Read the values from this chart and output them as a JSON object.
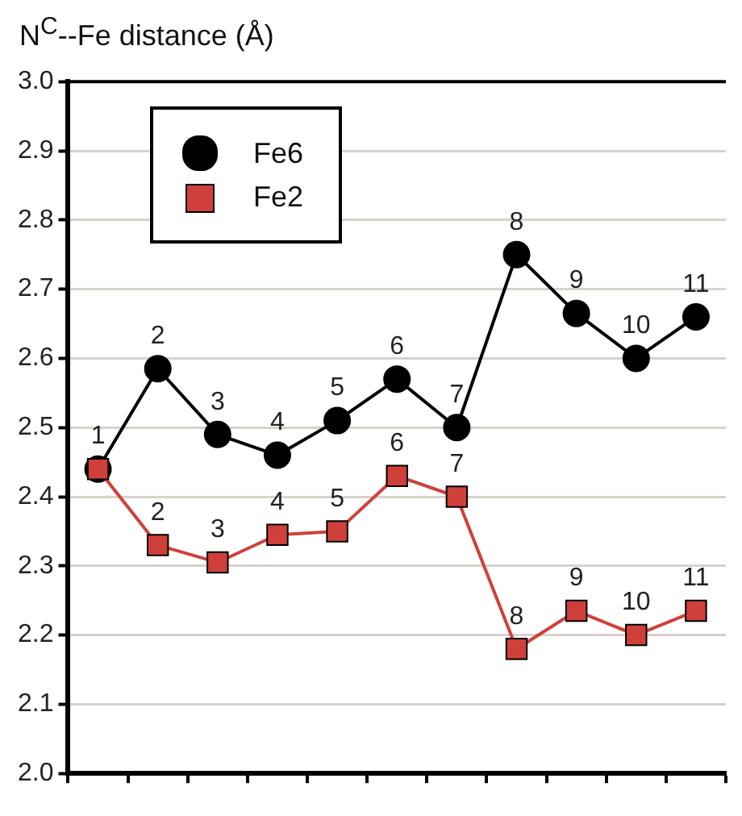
{
  "chart_data": {
    "type": "line",
    "ylabel": "N$^{C}$--Fe distance (Å)",
    "categories": [
      null,
      null,
      null,
      null,
      null,
      null,
      null,
      null,
      null,
      null,
      null
    ],
    "series": [
      {
        "name": "Fe6",
        "color": "#000000",
        "marker": "circle",
        "values": [
          2.44,
          2.585,
          2.49,
          2.46,
          2.51,
          2.57,
          2.5,
          2.75,
          2.665,
          2.6,
          2.66
        ]
      },
      {
        "name": "Fe2",
        "color": "#d0403a",
        "marker": "square",
        "values": [
          2.44,
          2.33,
          2.305,
          2.345,
          2.35,
          2.43,
          2.4,
          2.18,
          2.235,
          2.2,
          2.235
        ]
      }
    ],
    "annotations": [
      {
        "text": "1",
        "y": 2.44
      },
      {
        "text": "2",
        "y": 2.585
      },
      {
        "text": "3",
        "y": 2.49
      },
      {
        "text": "4",
        "y": 2.46
      },
      {
        "text": "5",
        "y": 2.51
      },
      {
        "text": "6",
        "y": 2.57
      },
      {
        "text": "7",
        "y": 2.5
      },
      {
        "text": "8",
        "y": 2.75
      },
      {
        "text": "9",
        "y": 2.665
      },
      {
        "text": "10",
        "y": 2.6
      },
      {
        "text": "11",
        "y": 2.66
      },
      {
        "text": "2",
        "y": 2.33
      },
      {
        "text": "3",
        "y": 2.305
      },
      {
        "text": "4",
        "y": 2.345
      },
      {
        "text": "5",
        "y": 2.35
      },
      {
        "text": "6",
        "y": 2.43
      },
      {
        "text": "7",
        "y": 2.4
      },
      {
        "text": "8",
        "y": 2.18
      },
      {
        "text": "9",
        "y": 2.235
      },
      {
        "text": "10",
        "y": 2.2
      },
      {
        "text": "11",
        "y": 2.235
      }
    ],
    "ylim": [
      2.0,
      3.0
    ],
    "yticks": [
      {
        "value": 2.0,
        "label": "2.0"
      },
      2.1,
      2.2,
      2.3,
      2.4,
      2.5,
      2.6,
      2.7,
      2.8,
      2.9,
      {
        "value": 3.0,
        "label": "3.0"
      }
    ],
    "grid": "y",
    "legend": "top left",
    "line_style": "solid"
  }
}
